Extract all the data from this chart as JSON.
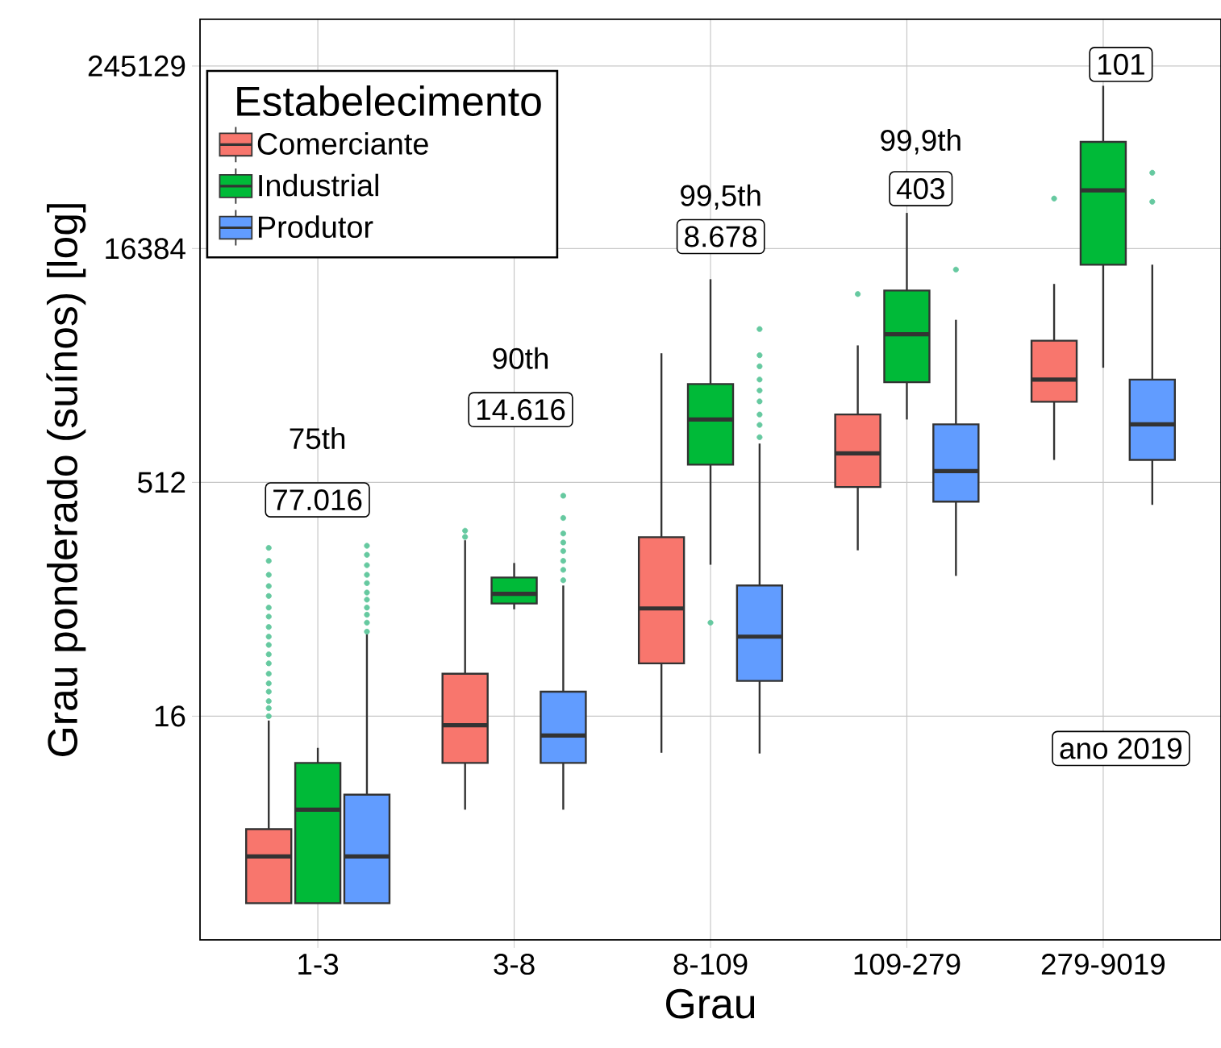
{
  "chart_data": {
    "type": "box",
    "xlabel": "Grau",
    "ylabel": "Grau ponderado (suínos) [log]",
    "legend_title": "Estabelecimento",
    "legend": "top left",
    "grid": true,
    "log": "y",
    "categories": [
      "1-3",
      "3-8",
      "8-109",
      "109-279",
      "279-9019"
    ],
    "ylim": [
      0.58,
      490000
    ],
    "yticks": [
      16,
      512,
      16384,
      245129
    ],
    "series": [
      {
        "name": "Comerciante",
        "color": "#f8766d",
        "boxes": [
          {
            "low": 1,
            "q1": 1,
            "median": 2,
            "q3": 3,
            "high": 15,
            "outliers": [
              16,
              18,
              20,
              23,
              26,
              30,
              35,
              40,
              46,
              52,
              60,
              70,
              80,
              95,
              110,
              130,
              160,
              194
            ]
          },
          {
            "low": 4,
            "q1": 8,
            "median": 14,
            "q3": 30,
            "high": 217,
            "outliers": [
              228,
              250
            ]
          },
          {
            "low": 9.3,
            "q1": 35,
            "median": 79,
            "q3": 227,
            "high": 3470
          },
          {
            "low": 187,
            "q1": 478,
            "median": 787,
            "q3": 1400,
            "high": 3900,
            "outliers": [
              8350
            ]
          },
          {
            "low": 714,
            "q1": 1690,
            "median": 2350,
            "q3": 4180,
            "high": 9700,
            "outliers": [
              34400
            ]
          }
        ]
      },
      {
        "name": "Industrial",
        "color": "#00ba38",
        "boxes": [
          {
            "low": 1,
            "q1": 1,
            "median": 4,
            "q3": 8,
            "high": 10
          },
          {
            "low": 78,
            "q1": 85,
            "median": 98,
            "q3": 125,
            "high": 155
          },
          {
            "low": 151,
            "q1": 666,
            "median": 1300,
            "q3": 2200,
            "high": 10400,
            "outliers": [
              64
            ]
          },
          {
            "low": 1300,
            "q1": 2260,
            "median": 4600,
            "q3": 8800,
            "high": 27800
          },
          {
            "low": 2800,
            "q1": 12900,
            "median": 38800,
            "q3": 79700,
            "high": 183000
          }
        ]
      },
      {
        "name": "Produtor",
        "color": "#619cff",
        "boxes": [
          {
            "low": 1,
            "q1": 1,
            "median": 2,
            "q3": 5,
            "high": 54,
            "outliers": [
              56,
              64,
              72,
              80,
              90,
              100,
              115,
              130,
              150,
              175,
              200
            ]
          },
          {
            "low": 4,
            "q1": 8,
            "median": 12,
            "q3": 23,
            "high": 111,
            "outliers": [
              120,
              140,
              160,
              185,
              210,
              240,
              302,
              420
            ]
          },
          {
            "low": 9.2,
            "q1": 27,
            "median": 52,
            "q3": 111,
            "high": 910,
            "outliers": [
              1000,
              1200,
              1400,
              1700,
              2000,
              2350,
              2860,
              3370,
              4970
            ]
          },
          {
            "low": 128,
            "q1": 385,
            "median": 605,
            "q3": 1210,
            "high": 5700,
            "outliers": [
              12000
            ]
          },
          {
            "low": 367,
            "q1": 714,
            "median": 1210,
            "q3": 2350,
            "high": 12900,
            "outliers": [
              32800,
              50400
            ]
          }
        ]
      }
    ],
    "annotations": [
      "75th",
      "77.016",
      "90th",
      "14.616",
      "99,5th",
      "8.678",
      "99,9th",
      "403",
      "101",
      "ano 2019"
    ]
  }
}
